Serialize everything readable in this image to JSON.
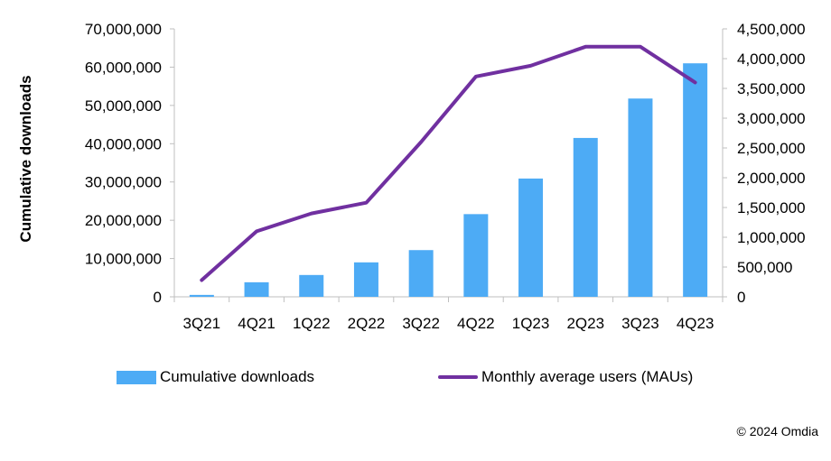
{
  "chart_data": {
    "type": "bar+line",
    "categories": [
      "3Q21",
      "4Q21",
      "1Q22",
      "2Q22",
      "3Q22",
      "4Q22",
      "1Q23",
      "2Q23",
      "3Q23",
      "4Q23"
    ],
    "series": [
      {
        "name": "Cumulative downloads",
        "type": "bar",
        "axis": "left",
        "color": "#4dabf5",
        "values": [
          500000,
          3800000,
          5700000,
          9000000,
          12200000,
          21600000,
          30900000,
          41500000,
          51800000,
          61000000
        ]
      },
      {
        "name": "Monthly average users (MAUs)",
        "type": "line",
        "axis": "right",
        "color": "#7030a0",
        "values": [
          280000,
          1100000,
          1400000,
          1580000,
          2600000,
          3700000,
          3880000,
          4200000,
          4200000,
          3600000
        ]
      }
    ],
    "ylabel": "Cumulative downloads",
    "ylim": [
      0,
      70000000
    ],
    "yticks": [
      "0",
      "10,000,000",
      "20,000,000",
      "30,000,000",
      "40,000,000",
      "50,000,000",
      "60,000,000",
      "70,000,000"
    ],
    "y2lim": [
      0,
      4500000
    ],
    "y2ticks": [
      "0",
      "500,000",
      "1,000,000",
      "1,500,000",
      "2,000,000",
      "2,500,000",
      "3,000,000",
      "3,500,000",
      "4,000,000",
      "4,500,000"
    ],
    "legend_position": "bottom",
    "grid": false
  },
  "legend": {
    "downloads_label": "Cumulative downloads",
    "mau_label": "Monthly average users (MAUs)"
  },
  "footer": {
    "copyright": "© 2024 Omdia"
  }
}
